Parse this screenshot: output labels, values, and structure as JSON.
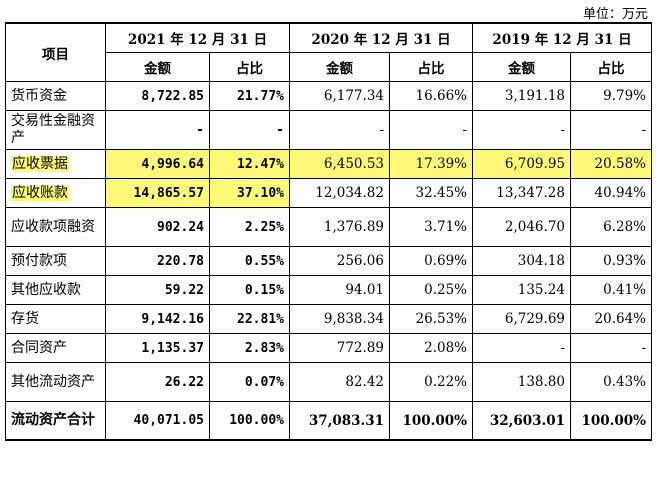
{
  "unit": "单位：万元",
  "header": {
    "item": "项目",
    "years": [
      "2021 年 12 月 31 日",
      "2020 年 12 月 31 日",
      "2019 年 12 月 31 日"
    ],
    "amount": "金额",
    "ratio": "占比"
  },
  "rows": [
    {
      "name": "货币资金",
      "v2021": "8,722.85",
      "p2021": "21.77%",
      "v2020": "6,177.34",
      "p2020": "16.66%",
      "v2019": "3,191.18",
      "p2019": "9.79%"
    },
    {
      "name": "交易性金融资产",
      "v2021": "-",
      "p2021": "-",
      "v2020": "-",
      "p2020": "-",
      "v2019": "-",
      "p2019": "-"
    },
    {
      "name": "应收票据",
      "v2021": "4,996.64",
      "p2021": "12.47%",
      "v2020": "6,450.53",
      "p2020": "17.39%",
      "v2019": "6,709.95",
      "p2019": "20.58%"
    },
    {
      "name": "应收账款",
      "v2021": "14,865.57",
      "p2021": "37.10%",
      "v2020": "12,034.82",
      "p2020": "32.45%",
      "v2019": "13,347.28",
      "p2019": "40.94%"
    },
    {
      "name": "应收款项融资",
      "v2021": "902.24",
      "p2021": "2.25%",
      "v2020": "1,376.89",
      "p2020": "3.71%",
      "v2019": "2,046.70",
      "p2019": "6.28%"
    },
    {
      "name": "预付款项",
      "v2021": "220.78",
      "p2021": "0.55%",
      "v2020": "256.06",
      "p2020": "0.69%",
      "v2019": "304.18",
      "p2019": "0.93%"
    },
    {
      "name": "其他应收款",
      "v2021": "59.22",
      "p2021": "0.15%",
      "v2020": "94.01",
      "p2020": "0.25%",
      "v2019": "135.24",
      "p2019": "0.41%"
    },
    {
      "name": "存货",
      "v2021": "9,142.16",
      "p2021": "22.81%",
      "v2020": "9,838.34",
      "p2020": "26.53%",
      "v2019": "6,729.69",
      "p2019": "20.64%"
    },
    {
      "name": "合同资产",
      "v2021": "1,135.37",
      "p2021": "2.83%",
      "v2020": "772.89",
      "p2020": "2.08%",
      "v2019": "-",
      "p2019": "-"
    },
    {
      "name": "其他流动资产",
      "v2021": "26.22",
      "p2021": "0.07%",
      "v2020": "82.42",
      "p2020": "0.22%",
      "v2019": "138.80",
      "p2019": "0.43%"
    },
    {
      "name": "流动资产合计",
      "v2021": "40,071.05",
      "p2021": "100.00%",
      "v2020": "37,083.31",
      "p2020": "100.00%",
      "v2019": "32,603.01",
      "p2019": "100.00%"
    }
  ],
  "highlight_color": "#fff97a"
}
